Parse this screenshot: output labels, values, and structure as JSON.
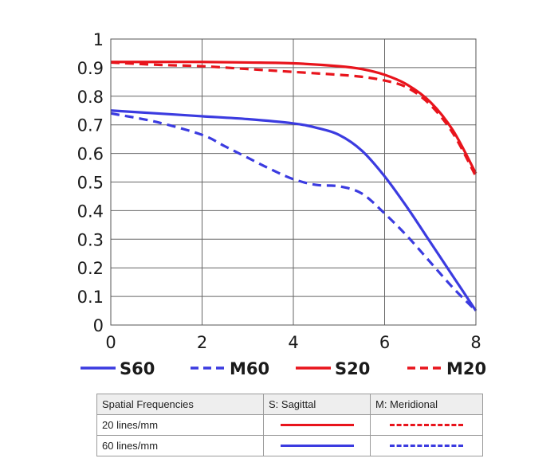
{
  "chart_data": {
    "type": "line",
    "xlim": [
      0,
      8
    ],
    "ylim": [
      0,
      1
    ],
    "x_ticks": [
      "0",
      "2",
      "4",
      "6",
      "8"
    ],
    "y_ticks": [
      "0",
      "0.1",
      "0.2",
      "0.3",
      "0.4",
      "0.5",
      "0.6",
      "0.7",
      "0.8",
      "0.9",
      "1"
    ],
    "grid": true,
    "legend_position": "bottom",
    "series": [
      {
        "name": "S60",
        "color": "#3b3be0",
        "style": "solid",
        "x": [
          0,
          1,
          2,
          3,
          4,
          4.5,
          5,
          5.5,
          6,
          6.5,
          7,
          7.5,
          8
        ],
        "y": [
          0.75,
          0.74,
          0.73,
          0.72,
          0.705,
          0.69,
          0.665,
          0.61,
          0.52,
          0.41,
          0.29,
          0.17,
          0.05
        ]
      },
      {
        "name": "M60",
        "color": "#3b3be0",
        "style": "dashed",
        "x": [
          0,
          1,
          2,
          2.5,
          3,
          3.5,
          4,
          4.5,
          5,
          5.5,
          6,
          6.5,
          7,
          7.5,
          8
        ],
        "y": [
          0.74,
          0.71,
          0.665,
          0.625,
          0.585,
          0.545,
          0.51,
          0.49,
          0.485,
          0.46,
          0.39,
          0.31,
          0.22,
          0.13,
          0.05
        ]
      },
      {
        "name": "S20",
        "color": "#e8141c",
        "style": "solid",
        "x": [
          0,
          1,
          2,
          3,
          4,
          5,
          5.5,
          6,
          6.5,
          7,
          7.5,
          8
        ],
        "y": [
          0.92,
          0.92,
          0.92,
          0.918,
          0.915,
          0.905,
          0.895,
          0.875,
          0.84,
          0.78,
          0.68,
          0.53
        ]
      },
      {
        "name": "M20",
        "color": "#e8141c",
        "style": "dashed",
        "x": [
          0,
          1,
          2,
          3,
          4,
          5,
          5.5,
          6,
          6.5,
          7,
          7.5,
          8
        ],
        "y": [
          0.918,
          0.91,
          0.905,
          0.895,
          0.885,
          0.875,
          0.868,
          0.855,
          0.83,
          0.77,
          0.67,
          0.52
        ]
      }
    ]
  },
  "table": {
    "header": [
      "Spatial Frequencies",
      "S: Sagittal",
      "M: Meridional"
    ],
    "rows": [
      {
        "label": "20 lines/mm",
        "sagittal_color": "#e8141c",
        "meridional_color": "#e8141c"
      },
      {
        "label": "60 lines/mm",
        "sagittal_color": "#3b3be0",
        "meridional_color": "#3b3be0"
      }
    ]
  }
}
